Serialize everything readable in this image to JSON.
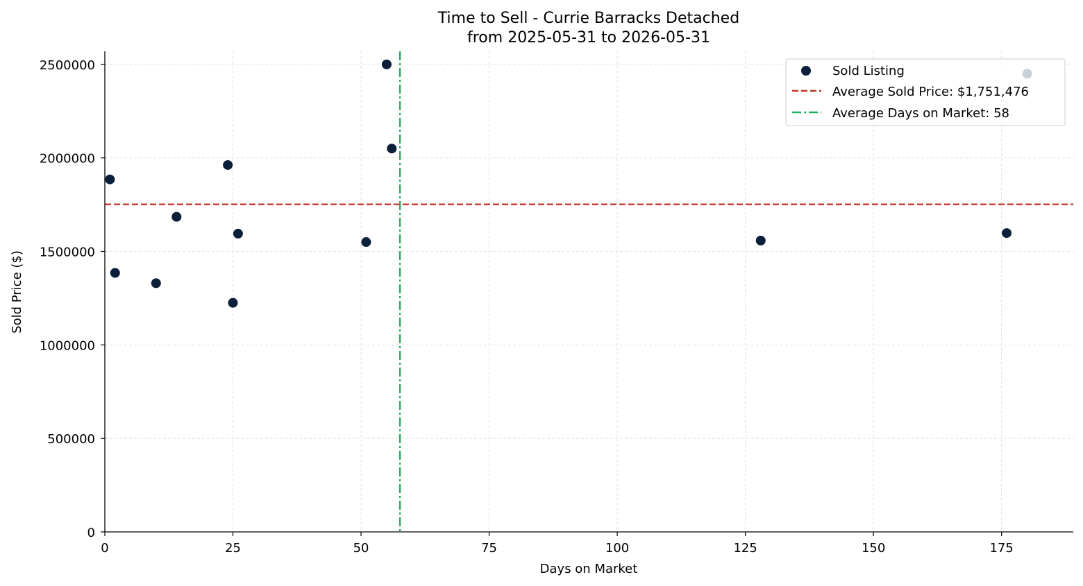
{
  "chart_data": {
    "type": "scatter",
    "title": "Time to Sell - Currie Barracks Detached",
    "subtitle": "from 2025-05-31 to 2026-05-31",
    "xlabel": "Days on Market",
    "ylabel": "Sold Price ($)",
    "xlim": [
      0,
      189
    ],
    "ylim": [
      0,
      2570000
    ],
    "x_ticks": [
      0,
      25,
      50,
      75,
      100,
      125,
      150,
      175
    ],
    "y_ticks": [
      0,
      500000,
      1000000,
      1500000,
      2000000,
      2500000
    ],
    "grid": true,
    "legend_position": "top-right",
    "series": [
      {
        "name": "Sold Listing",
        "color": "#0b1f3a",
        "points": [
          {
            "x": 1,
            "y": 1885000
          },
          {
            "x": 2,
            "y": 1385000
          },
          {
            "x": 10,
            "y": 1330000
          },
          {
            "x": 14,
            "y": 1685000
          },
          {
            "x": 24,
            "y": 1962000
          },
          {
            "x": 25,
            "y": 1225000
          },
          {
            "x": 26,
            "y": 1595000
          },
          {
            "x": 51,
            "y": 1550000
          },
          {
            "x": 55,
            "y": 2500000
          },
          {
            "x": 56,
            "y": 2050000
          },
          {
            "x": 128,
            "y": 1558000
          },
          {
            "x": 176,
            "y": 1598000
          }
        ]
      }
    ],
    "reference_lines": [
      {
        "orientation": "horizontal",
        "value": 1751476,
        "label": "Average Sold Price: $1,751,476",
        "color": "#c0392b",
        "style": "dashed"
      },
      {
        "orientation": "vertical",
        "value": 57.6,
        "label": "Average Days on Market: 58",
        "color": "#27ae60",
        "style": "dashdot"
      }
    ],
    "faded_points": [
      {
        "x": 180,
        "y": 2450000,
        "color": "#c8d0d8"
      }
    ]
  }
}
